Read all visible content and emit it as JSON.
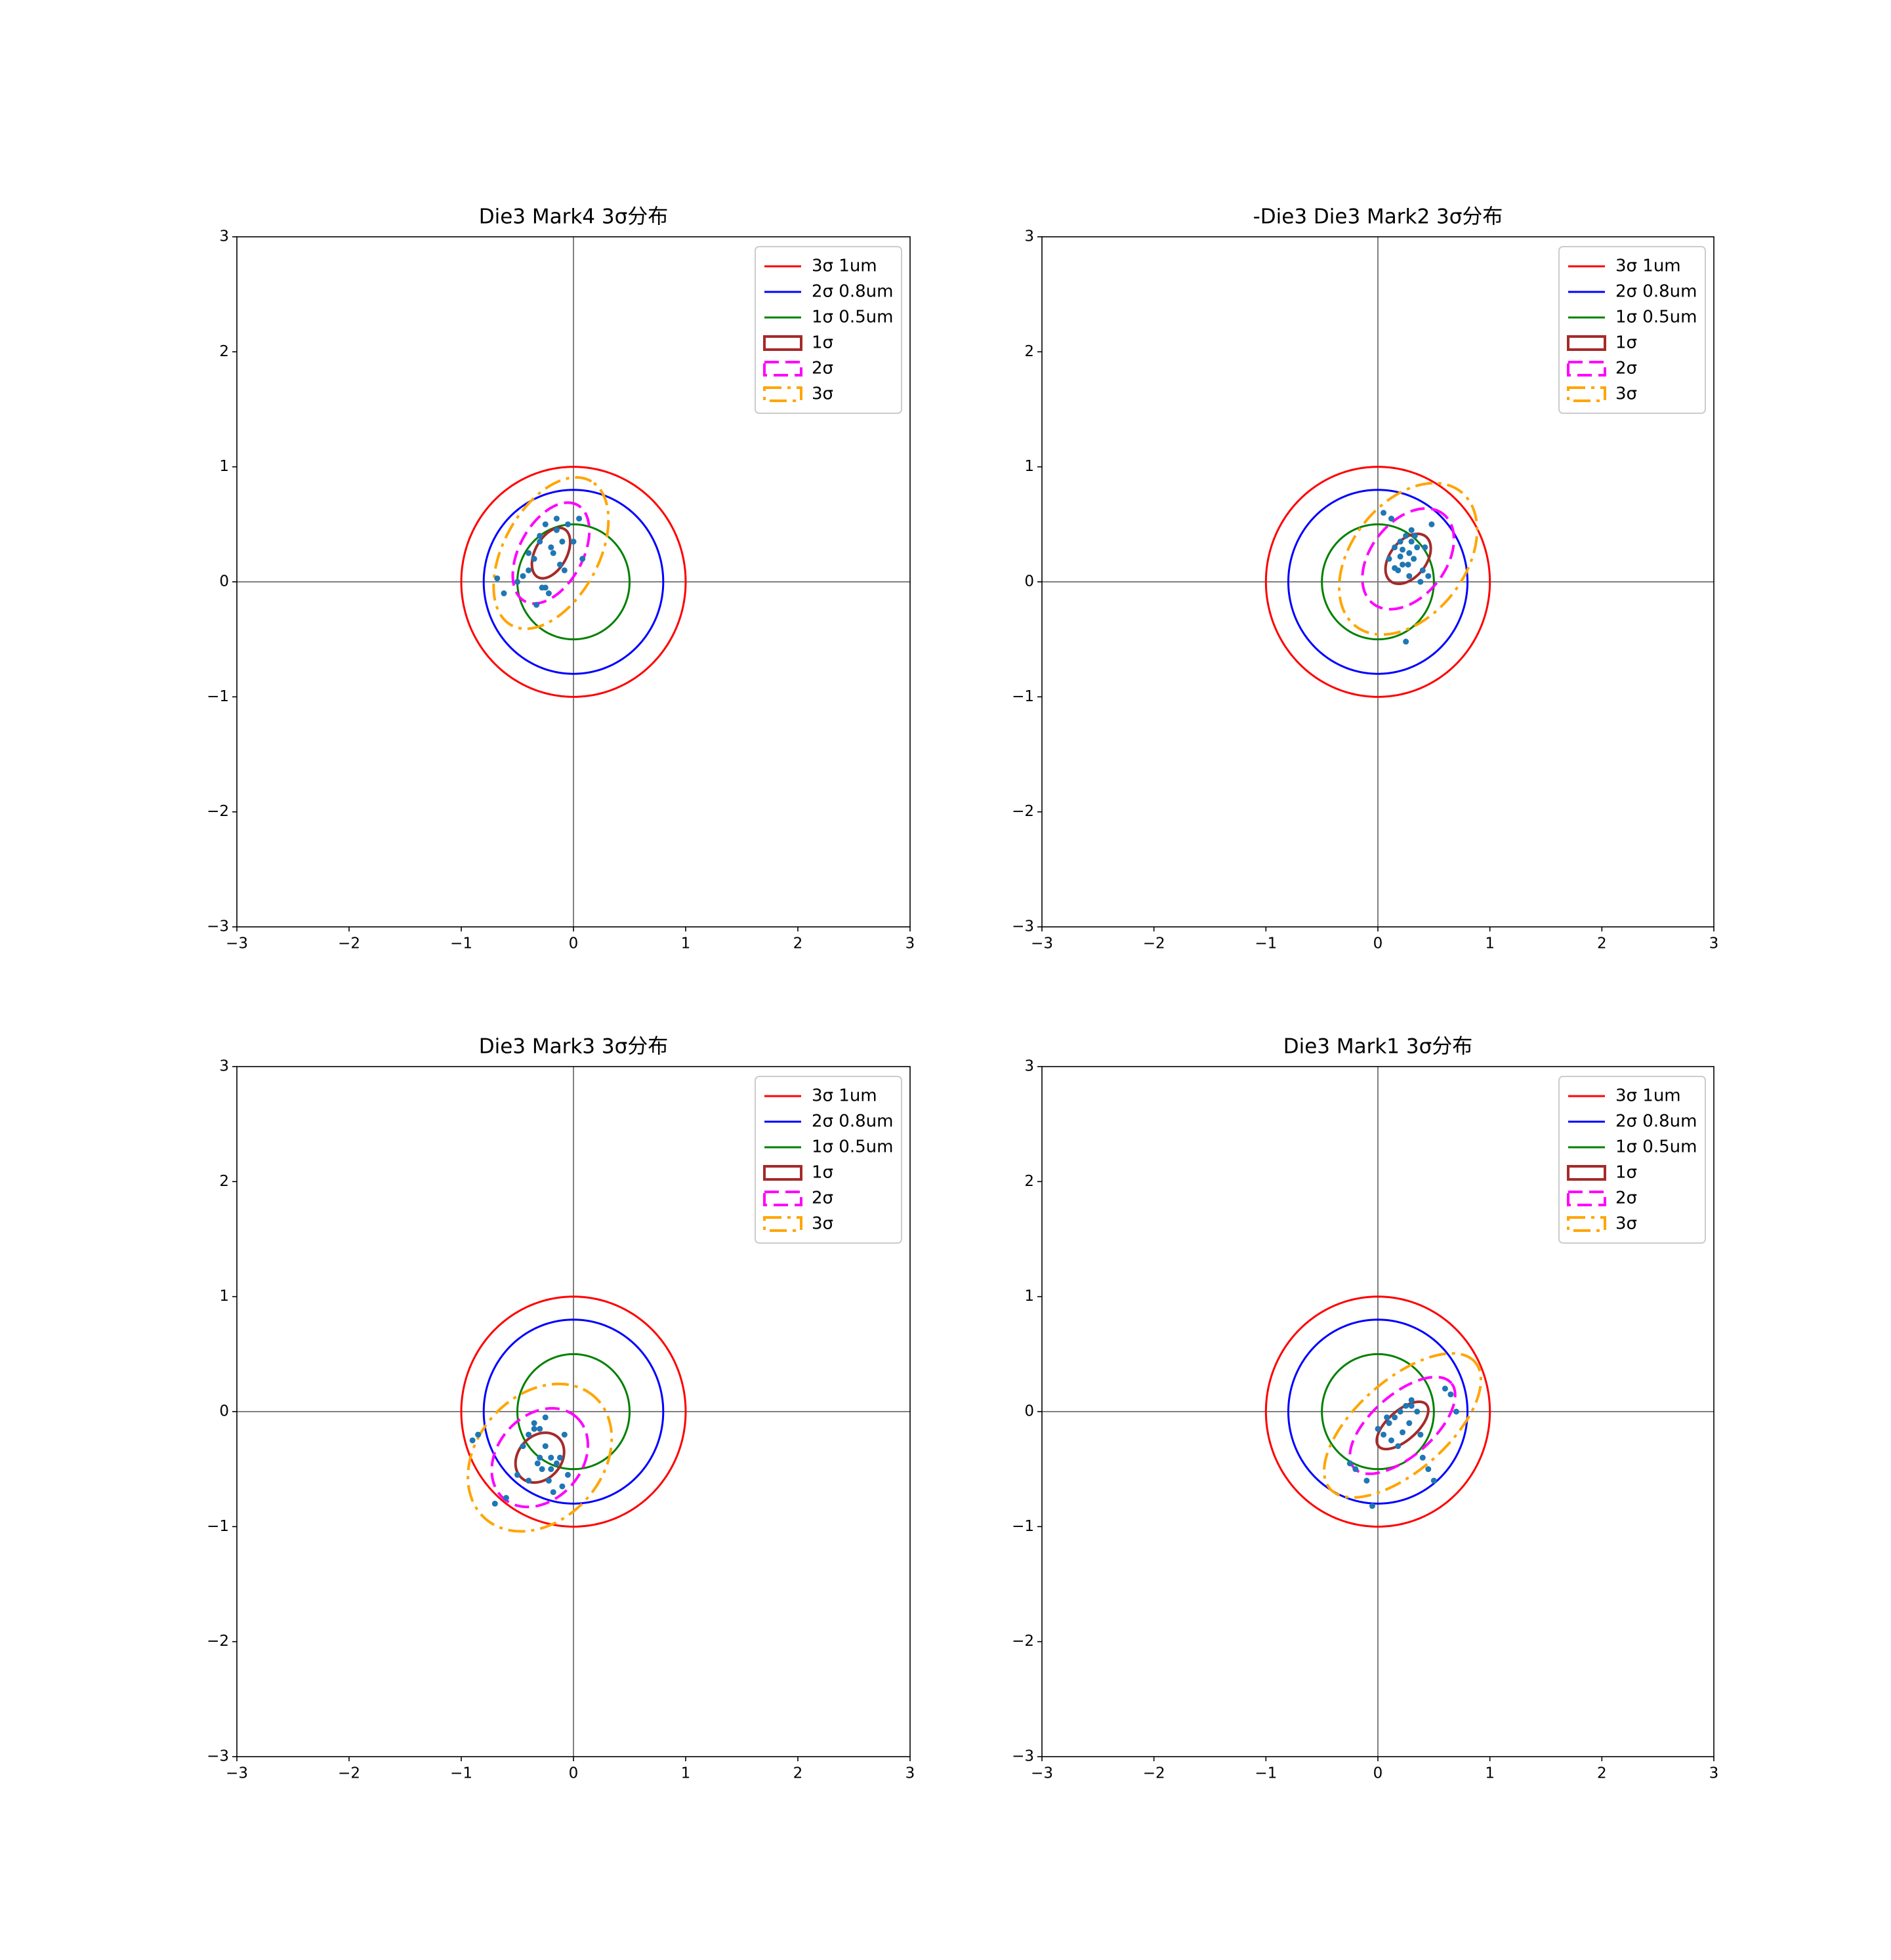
{
  "chart_data": [
    {
      "type": "scatter",
      "title": "Die3 Mark4 3σ分布",
      "xlim": [
        -3,
        3
      ],
      "ylim": [
        -3,
        3
      ],
      "xticks": [
        {
          "value": -3,
          "label": "−3"
        },
        {
          "value": -2,
          "label": "−2"
        },
        {
          "value": -1,
          "label": "−1"
        },
        0,
        1,
        2,
        3
      ],
      "yticks": [
        {
          "value": -3,
          "label": "−3"
        },
        {
          "value": -2,
          "label": "−2"
        },
        {
          "value": -1,
          "label": "−1"
        },
        0,
        1,
        2,
        3
      ],
      "origin_lines": true,
      "legend": "upper right",
      "circles": [
        {
          "name": "3σ 1um",
          "color": "red",
          "radius": 1
        },
        {
          "name": "2σ 0.8um",
          "color": "blue",
          "radius": 0.8
        },
        {
          "name": "1σ 0.5um",
          "color": "green",
          "radius": 0.5
        }
      ],
      "ellipses": [
        {
          "name": "1σ",
          "color": "brown",
          "line_style": "solid",
          "center": [
            -0.2,
            0.25
          ],
          "semi_axes": [
            0.24,
            0.14
          ],
          "angle": 60
        },
        {
          "name": "2σ",
          "color": "magenta",
          "line_style": "dashed",
          "center": [
            -0.2,
            0.25
          ],
          "semi_axes": [
            0.48,
            0.28
          ],
          "angle": 60
        },
        {
          "name": "3σ",
          "color": "orange",
          "line_style": "dashdot",
          "center": [
            -0.2,
            0.25
          ],
          "semi_axes": [
            0.72,
            0.42
          ],
          "angle": 60
        }
      ],
      "points": {
        "color": "#1f77b4",
        "x": [
          -0.25,
          -0.3,
          -0.15,
          -0.2,
          -0.1,
          -0.35,
          -0.4,
          -0.45,
          -0.28,
          -0.18,
          -0.05,
          0.05,
          0.0,
          -0.12,
          -0.22,
          -0.33,
          -0.5,
          -0.62,
          -0.68,
          -0.3,
          -0.15,
          -0.08,
          -0.25,
          -0.4,
          0.08
        ],
        "y": [
          0.5,
          0.4,
          0.45,
          0.3,
          0.35,
          0.2,
          0.1,
          0.05,
          -0.05,
          0.25,
          0.5,
          0.55,
          0.35,
          0.15,
          -0.1,
          -0.2,
          0.0,
          -0.1,
          0.03,
          0.35,
          0.55,
          0.1,
          -0.05,
          0.25,
          0.2
        ]
      }
    },
    {
      "type": "scatter",
      "title": "-Die3 Die3 Mark2 3σ分布",
      "xlim": [
        -3,
        3
      ],
      "ylim": [
        -3,
        3
      ],
      "xticks": [
        {
          "value": -3,
          "label": "−3"
        },
        {
          "value": -2,
          "label": "−2"
        },
        {
          "value": -1,
          "label": "−1"
        },
        0,
        1,
        2,
        3
      ],
      "yticks": [
        {
          "value": -3,
          "label": "−3"
        },
        {
          "value": -2,
          "label": "−2"
        },
        {
          "value": -1,
          "label": "−1"
        },
        0,
        1,
        2,
        3
      ],
      "origin_lines": true,
      "legend": "upper right",
      "circles": [
        {
          "name": "3σ 1um",
          "color": "red",
          "radius": 1
        },
        {
          "name": "2σ 0.8um",
          "color": "blue",
          "radius": 0.8
        },
        {
          "name": "1σ 0.5um",
          "color": "green",
          "radius": 0.5
        }
      ],
      "ellipses": [
        {
          "name": "1σ",
          "color": "brown",
          "line_style": "solid",
          "center": [
            0.27,
            0.2
          ],
          "semi_axes": [
            0.25,
            0.16
          ],
          "angle": 50
        },
        {
          "name": "2σ",
          "color": "magenta",
          "line_style": "dashed",
          "center": [
            0.27,
            0.2
          ],
          "semi_axes": [
            0.5,
            0.33
          ],
          "angle": 50
        },
        {
          "name": "3σ",
          "color": "orange",
          "line_style": "dashdot",
          "center": [
            0.27,
            0.2
          ],
          "semi_axes": [
            0.75,
            0.5
          ],
          "angle": 50
        }
      ],
      "points": {
        "color": "#1f77b4",
        "x": [
          0.1,
          0.15,
          0.2,
          0.25,
          0.3,
          0.35,
          0.28,
          0.22,
          0.18,
          0.32,
          0.4,
          0.45,
          0.48,
          0.12,
          0.05,
          0.25,
          0.3,
          0.38,
          0.2,
          0.27,
          0.42,
          0.15,
          0.33,
          0.28,
          0.22
        ],
        "y": [
          0.2,
          0.3,
          0.35,
          0.4,
          0.45,
          0.3,
          0.25,
          0.15,
          0.1,
          0.2,
          0.1,
          0.05,
          0.5,
          0.55,
          0.6,
          -0.52,
          0.35,
          0.0,
          0.22,
          0.15,
          0.3,
          0.12,
          0.4,
          0.05,
          0.28
        ]
      }
    },
    {
      "type": "scatter",
      "title": "Die3 Mark3 3σ分布",
      "xlim": [
        -3,
        3
      ],
      "ylim": [
        -3,
        3
      ],
      "xticks": [
        {
          "value": -3,
          "label": "−3"
        },
        {
          "value": -2,
          "label": "−2"
        },
        {
          "value": -1,
          "label": "−1"
        },
        0,
        1,
        2,
        3
      ],
      "yticks": [
        {
          "value": -3,
          "label": "−3"
        },
        {
          "value": -2,
          "label": "−2"
        },
        {
          "value": -1,
          "label": "−1"
        },
        0,
        1,
        2,
        3
      ],
      "origin_lines": true,
      "legend": "upper right",
      "circles": [
        {
          "name": "3σ 1um",
          "color": "red",
          "radius": 1
        },
        {
          "name": "2σ 0.8um",
          "color": "blue",
          "radius": 0.8
        },
        {
          "name": "1σ 0.5um",
          "color": "green",
          "radius": 0.5
        }
      ],
      "ellipses": [
        {
          "name": "1σ",
          "color": "brown",
          "line_style": "solid",
          "center": [
            -0.3,
            -0.4
          ],
          "semi_axes": [
            0.24,
            0.19
          ],
          "angle": 45
        },
        {
          "name": "2σ",
          "color": "magenta",
          "line_style": "dashed",
          "center": [
            -0.3,
            -0.4
          ],
          "semi_axes": [
            0.48,
            0.37
          ],
          "angle": 45
        },
        {
          "name": "3σ",
          "color": "orange",
          "line_style": "dashdot",
          "center": [
            -0.3,
            -0.4
          ],
          "semi_axes": [
            0.72,
            0.55
          ],
          "angle": 45
        }
      ],
      "points": {
        "color": "#1f77b4",
        "x": [
          -0.35,
          -0.3,
          -0.25,
          -0.2,
          -0.15,
          -0.4,
          -0.45,
          -0.5,
          -0.3,
          -0.28,
          -0.22,
          -0.18,
          -0.1,
          -0.05,
          -0.6,
          -0.7,
          -0.85,
          -0.9,
          -0.35,
          -0.25,
          -0.12,
          -0.4,
          -0.32,
          -0.2,
          -0.08
        ],
        "y": [
          -0.1,
          -0.15,
          -0.3,
          -0.4,
          -0.45,
          -0.2,
          -0.3,
          -0.55,
          -0.4,
          -0.5,
          -0.6,
          -0.7,
          -0.65,
          -0.55,
          -0.75,
          -0.8,
          -0.2,
          -0.25,
          -0.15,
          -0.05,
          -0.4,
          -0.6,
          -0.45,
          -0.5,
          -0.2
        ]
      }
    },
    {
      "type": "scatter",
      "title": "Die3 Mark1 3σ分布",
      "xlim": [
        -3,
        3
      ],
      "ylim": [
        -3,
        3
      ],
      "xticks": [
        {
          "value": -3,
          "label": "−3"
        },
        {
          "value": -2,
          "label": "−2"
        },
        {
          "value": -1,
          "label": "−1"
        },
        0,
        1,
        2,
        3
      ],
      "yticks": [
        {
          "value": -3,
          "label": "−3"
        },
        {
          "value": -2,
          "label": "−2"
        },
        {
          "value": -1,
          "label": "−1"
        },
        0,
        1,
        2,
        3
      ],
      "origin_lines": true,
      "legend": "upper right",
      "circles": [
        {
          "name": "3σ 1um",
          "color": "red",
          "radius": 1
        },
        {
          "name": "2σ 0.8um",
          "color": "blue",
          "radius": 0.8
        },
        {
          "name": "1σ 0.5um",
          "color": "green",
          "radius": 0.5
        }
      ],
      "ellipses": [
        {
          "name": "1σ",
          "color": "brown",
          "line_style": "solid",
          "center": [
            0.22,
            -0.12
          ],
          "semi_axes": [
            0.28,
            0.13
          ],
          "angle": 40
        },
        {
          "name": "2σ",
          "color": "magenta",
          "line_style": "dashed",
          "center": [
            0.22,
            -0.12
          ],
          "semi_axes": [
            0.57,
            0.27
          ],
          "angle": 40
        },
        {
          "name": "3σ",
          "color": "orange",
          "line_style": "dashdot",
          "center": [
            0.22,
            -0.12
          ],
          "semi_axes": [
            0.85,
            0.4
          ],
          "angle": 40
        }
      ],
      "points": {
        "color": "#1f77b4",
        "x": [
          0.1,
          0.15,
          0.2,
          0.25,
          0.3,
          0.05,
          0.0,
          0.12,
          0.18,
          0.28,
          0.35,
          0.4,
          0.45,
          0.5,
          0.6,
          0.65,
          0.7,
          -0.2,
          -0.25,
          -0.1,
          -0.05,
          0.22,
          0.3,
          0.38,
          0.08
        ],
        "y": [
          -0.1,
          -0.05,
          0.0,
          0.05,
          0.1,
          -0.2,
          -0.15,
          -0.25,
          -0.3,
          -0.1,
          0.0,
          -0.4,
          -0.5,
          -0.6,
          0.2,
          0.15,
          0.0,
          -0.5,
          -0.45,
          -0.6,
          -0.82,
          -0.18,
          0.05,
          -0.2,
          -0.05
        ]
      }
    }
  ]
}
